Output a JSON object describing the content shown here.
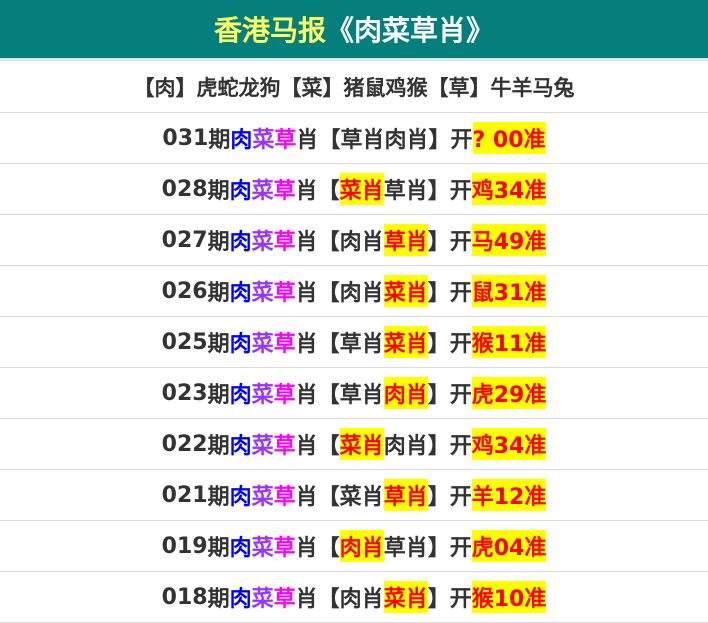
{
  "header": {
    "title_part1": "香港马报",
    "title_part2": "《肉菜草肖》"
  },
  "legend": "【肉】虎蛇龙狗【菜】猪鼠鸡猴【草】牛羊马兔",
  "labels": {
    "period": "期",
    "c1": "肉",
    "c2": "菜",
    "c3": "草",
    "xiao": "肖",
    "open_bracket": "【",
    "close_bracket": "】",
    "open": "开"
  },
  "colors": {
    "header_bg": "#047f7b",
    "title_yellow": "#ffff66",
    "highlight_bg": "#ffff00",
    "highlight_text": "#ff0000",
    "c1": "#0000ff",
    "c2": "#9933ff",
    "c3": "#ff00ff"
  },
  "rows": [
    {
      "issue": "031",
      "pick1": "草肖",
      "pick2": "肉肖",
      "hit": 0,
      "result": "? 00准"
    },
    {
      "issue": "028",
      "pick1": "菜肖",
      "pick2": "草肖",
      "hit": 1,
      "result": "鸡34准"
    },
    {
      "issue": "027",
      "pick1": "肉肖",
      "pick2": "草肖",
      "hit": 2,
      "result": "马49准"
    },
    {
      "issue": "026",
      "pick1": "肉肖",
      "pick2": "菜肖",
      "hit": 2,
      "result": "鼠31准"
    },
    {
      "issue": "025",
      "pick1": "草肖",
      "pick2": "菜肖",
      "hit": 2,
      "result": "猴11准"
    },
    {
      "issue": "023",
      "pick1": "草肖",
      "pick2": "肉肖",
      "hit": 2,
      "result": "虎29准"
    },
    {
      "issue": "022",
      "pick1": "菜肖",
      "pick2": "肉肖",
      "hit": 1,
      "result": "鸡34准"
    },
    {
      "issue": "021",
      "pick1": "菜肖",
      "pick2": "草肖",
      "hit": 2,
      "result": "羊12准"
    },
    {
      "issue": "019",
      "pick1": "肉肖",
      "pick2": "草肖",
      "hit": 1,
      "result": "虎04准"
    },
    {
      "issue": "018",
      "pick1": "肉肖",
      "pick2": "菜肖",
      "hit": 2,
      "result": "猴10准"
    }
  ]
}
